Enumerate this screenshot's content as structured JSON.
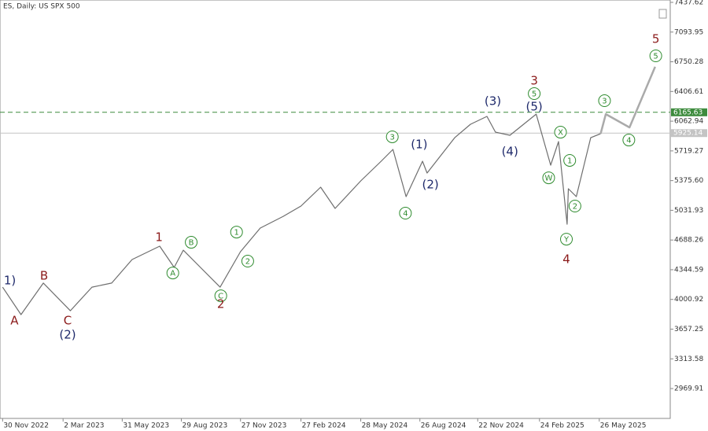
{
  "chart_data": {
    "type": "line",
    "title": "ES, Daily:  US SPX 500",
    "xlim": [
      "2022-11-26",
      "2025-09-11"
    ],
    "ylim": [
      2624.4,
      7464.9
    ],
    "yticks": [
      7437.62,
      7093.95,
      6750.28,
      6406.61,
      6062.94,
      5719.27,
      {
        "value": 5375.6,
        "label": "5375.60"
      },
      5031.93,
      4688.26,
      4344.59,
      4000.92,
      3657.25,
      3313.58,
      2969.91
    ],
    "xticks": [
      {
        "value": "2022-11-30",
        "label": "30 Nov 2022"
      },
      {
        "value": "2023-03-02",
        "label": "2 Mar 2023"
      },
      {
        "value": "2023-05-31",
        "label": "31 May 2023"
      },
      {
        "value": "2023-08-29",
        "label": "29 Aug 2023"
      },
      {
        "value": "2023-11-27",
        "label": "27 Nov 2023"
      },
      {
        "value": "2024-02-27",
        "label": "27 Feb 2024"
      },
      {
        "value": "2024-05-28",
        "label": "28 May 2024"
      },
      {
        "value": "2024-08-26",
        "label": "26 Aug 2024"
      },
      {
        "value": "2024-11-22",
        "label": "22 Nov 2024"
      },
      {
        "value": "2025-02-24",
        "label": "24 Feb 2025"
      },
      {
        "value": "2025-05-26",
        "label": "26 May 2025"
      }
    ],
    "series": [
      {
        "color": "#6e6e6e",
        "x": [
          "2022-11-30",
          "2022-12-28",
          "2023-01-31",
          "2023-03-13",
          "2023-04-15",
          "2023-05-15",
          "2023-06-15",
          "2023-07-27",
          "2023-08-18",
          "2023-09-01",
          "2023-10-27",
          "2023-11-27",
          "2023-12-27",
          "2024-01-31",
          "2024-02-27",
          "2024-03-28",
          "2024-04-19",
          "2024-05-28",
          "2024-06-28",
          "2024-07-16",
          "2024-08-05",
          "2024-08-30",
          "2024-09-06",
          "2024-10-18",
          "2024-11-11",
          "2024-12-06",
          "2024-12-19",
          "2025-01-10",
          "2025-02-19",
          "2025-03-13",
          "2025-03-25",
          "2025-04-07",
          "2025-04-09",
          "2025-04-21",
          "2025-05-13",
          "2025-05-28"
        ],
        "values": [
          4143,
          3825,
          4190,
          3870,
          4143,
          4190,
          4462,
          4617,
          4371,
          4571,
          4143,
          4553,
          4826,
          4962,
          5081,
          5299,
          5054,
          5372,
          5600,
          5736,
          5190,
          5600,
          5463,
          5872,
          6027,
          6118,
          5936,
          5900,
          6145,
          5554,
          5827,
          4871,
          5281,
          5190,
          5872,
          5918
        ]
      },
      {
        "color": "#aaaaaa",
        "x": [
          "2025-05-28",
          "2025-06-05",
          "2025-07-11",
          "2025-08-19"
        ],
        "values": [
          5918,
          6145,
          5991,
          6692
        ]
      }
    ],
    "levels": [
      {
        "value": 6165.63,
        "color": "#3d8b3d",
        "dashed": true
      },
      {
        "value": 5925.14,
        "color": "#c4c4c4",
        "dashed": false
      }
    ],
    "annotations": [
      {
        "text": "1)",
        "x": "2022-12-11",
        "y": 4216,
        "color": "#1f2a6b",
        "circled": false
      },
      {
        "text": "A",
        "x": "2022-12-18",
        "y": 3752,
        "color": "#8b1a1a",
        "circled": false
      },
      {
        "text": "B",
        "x": "2023-02-01",
        "y": 4271,
        "color": "#8b1a1a",
        "circled": false
      },
      {
        "text": "C",
        "x": "2023-03-09",
        "y": 3752,
        "color": "#8b1a1a",
        "circled": false
      },
      {
        "text": "(2)",
        "x": "2023-03-09",
        "y": 3588,
        "color": "#1f2a6b",
        "circled": false
      },
      {
        "text": "1",
        "x": "2023-07-26",
        "y": 4717,
        "color": "#8b1a1a",
        "circled": false
      },
      {
        "text": "A",
        "x": "2023-08-16",
        "y": 4307,
        "color": "#2e8b2e",
        "circled": true
      },
      {
        "text": "B",
        "x": "2023-09-13",
        "y": 4662,
        "color": "#2e8b2e",
        "circled": true
      },
      {
        "text": "1",
        "x": "2023-11-21",
        "y": 4780,
        "color": "#2e8b2e",
        "circled": true
      },
      {
        "text": "2",
        "x": "2023-12-08",
        "y": 4444,
        "color": "#2e8b2e",
        "circled": true
      },
      {
        "text": "C",
        "x": "2023-10-28",
        "y": 4043,
        "color": "#2e8b2e",
        "circled": true
      },
      {
        "text": "2",
        "x": "2023-10-28",
        "y": 3943,
        "color": "#8b1a1a",
        "circled": false
      },
      {
        "text": "3",
        "x": "2024-07-15",
        "y": 5882,
        "color": "#2e8b2e",
        "circled": true
      },
      {
        "text": "4",
        "x": "2024-08-04",
        "y": 4999,
        "color": "#2e8b2e",
        "circled": true
      },
      {
        "text": "(1)",
        "x": "2024-08-25",
        "y": 5791,
        "color": "#1f2a6b",
        "circled": false
      },
      {
        "text": "(2)",
        "x": "2024-09-11",
        "y": 5327,
        "color": "#1f2a6b",
        "circled": false
      },
      {
        "text": "(3)",
        "x": "2024-12-15",
        "y": 6291,
        "color": "#1f2a6b",
        "circled": false
      },
      {
        "text": "(4)",
        "x": "2025-01-10",
        "y": 5709,
        "color": "#1f2a6b",
        "circled": false
      },
      {
        "text": "(5)",
        "x": "2025-02-16",
        "y": 6227,
        "color": "#1f2a6b",
        "circled": false
      },
      {
        "text": "5",
        "x": "2025-02-16",
        "y": 6382,
        "color": "#2e8b2e",
        "circled": true
      },
      {
        "text": "3",
        "x": "2025-02-16",
        "y": 6528,
        "color": "#8b1a1a",
        "circled": false
      },
      {
        "text": "X",
        "x": "2025-03-28",
        "y": 5936,
        "color": "#2e8b2e",
        "circled": true
      },
      {
        "text": "W",
        "x": "2025-03-10",
        "y": 5408,
        "color": "#2e8b2e",
        "circled": true
      },
      {
        "text": "1",
        "x": "2025-04-11",
        "y": 5609,
        "color": "#2e8b2e",
        "circled": true
      },
      {
        "text": "2",
        "x": "2025-04-19",
        "y": 5081,
        "color": "#2e8b2e",
        "circled": true
      },
      {
        "text": "Y",
        "x": "2025-04-06",
        "y": 4698,
        "color": "#2e8b2e",
        "circled": true
      },
      {
        "text": "4",
        "x": "2025-04-06",
        "y": 4462,
        "color": "#8b1a1a",
        "circled": false
      },
      {
        "text": "3",
        "x": "2025-06-03",
        "y": 6300,
        "color": "#2e8b2e",
        "circled": true
      },
      {
        "text": "4",
        "x": "2025-07-10",
        "y": 5845,
        "color": "#2e8b2e",
        "circled": true
      },
      {
        "text": "5",
        "x": "2025-08-20",
        "y": 6819,
        "color": "#2e8b2e",
        "circled": true
      },
      {
        "text": "5",
        "x": "2025-08-20",
        "y": 7010,
        "color": "#8b1a1a",
        "circled": false
      }
    ]
  }
}
